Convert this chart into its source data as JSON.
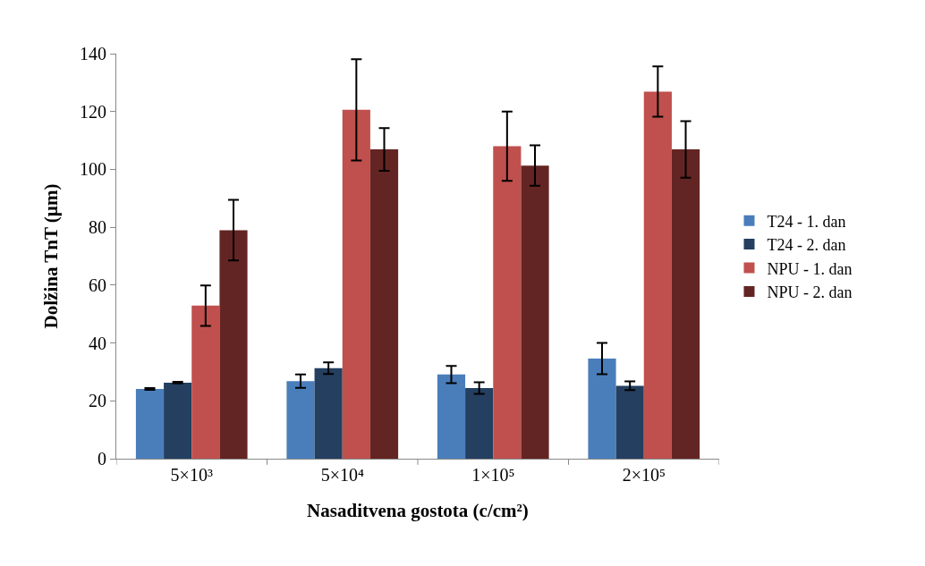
{
  "chart_data": {
    "type": "bar",
    "xlabel": "Nasaditvena gostota (c/cm²)",
    "ylabel": "Dolžina TnT (µm)",
    "categories": [
      "5×10³",
      "5×10⁴",
      "1×10⁵",
      "2×10⁵"
    ],
    "series": [
      {
        "name": "T24 - 1. dan",
        "color": "#4a7ebb",
        "values": [
          24.1,
          26.8,
          29.1,
          34.6
        ],
        "errors": [
          0.3,
          2.3,
          3,
          5.4
        ]
      },
      {
        "name": "T24 - 2. dan",
        "color": "#243f60",
        "values": [
          26.3,
          31.3,
          24.4,
          25.2
        ],
        "errors": [
          0.3,
          2,
          2,
          1.5
        ]
      },
      {
        "name": "NPU - 1. dan",
        "color": "#c0504d",
        "values": [
          52.9,
          120.6,
          108,
          126.9
        ],
        "errors": [
          7,
          17.5,
          12,
          8.7
        ]
      },
      {
        "name": "NPU - 2. dan",
        "color": "#632523",
        "values": [
          79,
          106.9,
          101.3,
          106.9
        ],
        "errors": [
          10.5,
          7.4,
          7,
          9.8
        ]
      }
    ],
    "ylim": [
      0,
      140
    ],
    "yticks": [
      0,
      20,
      40,
      60,
      80,
      100,
      120,
      140
    ],
    "grid": false,
    "legend": "right"
  }
}
